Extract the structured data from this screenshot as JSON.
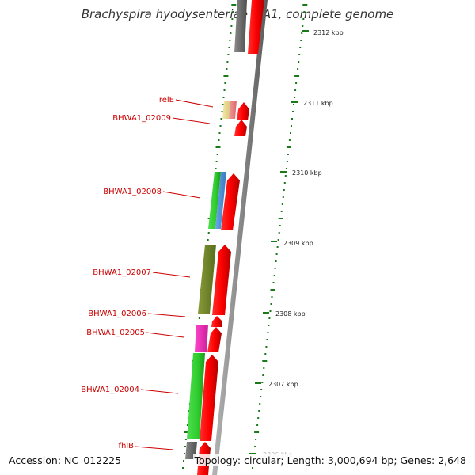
{
  "title": "Brachyspira hyodysenteriae WA1, complete genome",
  "accession": "Accession: NC_012225",
  "topology": "Topology: circular; Length: 3,000,694 bp; Genes: 2,648",
  "scale_labels": [
    "2312 kbp",
    "2311 kbp",
    "2310 kbp",
    "2309 kbp",
    "2308 kbp",
    "2307 kbp",
    "2306 kbp"
  ],
  "gene_labels": [
    "relE",
    "BHWA1_02009",
    "BHWA1_02008",
    "BHWA1_02007",
    "BHWA1_02006",
    "BHWA1_02005",
    "BHWA1_02004",
    "fhlB"
  ],
  "colors": {
    "label_text": "#cc0000",
    "label_line": "#cc0000",
    "cds_arrow": "#ff0000",
    "backbone": "#888888",
    "tick": "#1a7a1a"
  }
}
